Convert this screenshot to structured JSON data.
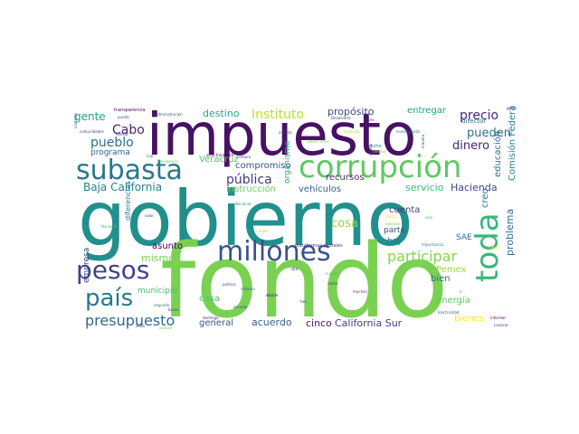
{
  "words": [
    {
      "text": "gobierno",
      "color": "#21908d"
    },
    {
      "text": "fondo",
      "color": "#7ad151"
    },
    {
      "text": "impuesto",
      "color": "#471164"
    },
    {
      "text": "corrupción",
      "color": "#5ec962"
    },
    {
      "text": "subasta",
      "color": "#2a788e"
    },
    {
      "text": "millones",
      "color": "#3b528b"
    },
    {
      "text": "pesos",
      "color": "#414487"
    },
    {
      "text": "país",
      "color": "#2a788e"
    },
    {
      "text": "toda",
      "color": "#35b779"
    },
    {
      "text": "presupuesto",
      "color": "#31688e"
    },
    {
      "text": "participar",
      "color": "#86d549"
    },
    {
      "text": "precio",
      "color": "#482878"
    },
    {
      "text": "Instituto",
      "color": "#bddf26"
    },
    {
      "text": "pública",
      "color": "#443983"
    },
    {
      "text": "Baja California",
      "color": "#26828e"
    },
    {
      "text": "Cabo",
      "color": "#481f70"
    },
    {
      "text": "pueblo",
      "color": "#2d708e"
    },
    {
      "text": "dinero",
      "color": "#482475"
    },
    {
      "text": "pueden",
      "color": "#2c728e"
    },
    {
      "text": "gente",
      "color": "#20a386"
    },
    {
      "text": "destino",
      "color": "#22a884"
    },
    {
      "text": "propósito",
      "color": "#3e4a89"
    },
    {
      "text": "entregar",
      "color": "#1fa187"
    },
    {
      "text": "programa",
      "color": "#32648e"
    },
    {
      "text": "Veracruz",
      "color": "#52c569"
    },
    {
      "text": "compromiso",
      "color": "#3b528b"
    },
    {
      "text": "instrucción",
      "color": "#6ece58"
    },
    {
      "text": "vehículos",
      "color": "#355f8d"
    },
    {
      "text": "organismo",
      "color": "#22a884"
    },
    {
      "text": "recursos",
      "color": "#472d7b"
    },
    {
      "text": "servicio",
      "color": "#3bbb75"
    },
    {
      "text": "Hacienda",
      "color": "#404688"
    },
    {
      "text": "educación",
      "color": "#2a788e"
    },
    {
      "text": "Comisión Federal",
      "color": "#27808e"
    },
    {
      "text": "cosa",
      "color": "#90d743"
    },
    {
      "text": "cuenta",
      "color": "#453882"
    },
    {
      "text": "parte",
      "color": "#3f4788"
    },
    {
      "text": "creo",
      "color": "#2c728e"
    },
    {
      "text": "problema",
      "color": "#2e6e8e"
    },
    {
      "text": "hoy",
      "color": "#25848e"
    },
    {
      "text": "SAE",
      "color": "#30698e"
    },
    {
      "text": "Pemex",
      "color": "#a0da39"
    },
    {
      "text": "bien",
      "color": "#2e6f8e"
    },
    {
      "text": "energía",
      "color": "#5ec962"
    },
    {
      "text": "bienes",
      "color": "#fde725"
    },
    {
      "text": "mismo",
      "color": "#7ad151"
    },
    {
      "text": "asunto",
      "color": "#440154"
    },
    {
      "text": "diferencias",
      "color": "#287c8e"
    },
    {
      "text": "municipio",
      "color": "#46c06f"
    },
    {
      "text": "empresa",
      "color": "#3e4989"
    },
    {
      "text": "casa",
      "color": "#4ac16d"
    },
    {
      "text": "general",
      "color": "#3a548c"
    },
    {
      "text": "acuerdo",
      "color": "#365c8d"
    },
    {
      "text": "cinco",
      "color": "#48186a"
    },
    {
      "text": "California Sur",
      "color": "#424086"
    },
    {
      "text": "transparencia",
      "color": "#440154"
    },
    {
      "text": "administración",
      "color": "#365d8d"
    },
    {
      "text": "pueda",
      "color": "#3f4889"
    },
    {
      "text": "comunidades",
      "color": "#443983"
    },
    {
      "text": "viendo",
      "color": "#46337f"
    },
    {
      "text": "contrato",
      "color": "#3b528b"
    },
    {
      "text": "lujo",
      "color": "#2c728e"
    },
    {
      "text": "Presidencia",
      "color": "#5ec962"
    },
    {
      "text": "Devolverle",
      "color": "#414487"
    },
    {
      "text": "Coahuila",
      "color": "#b5de2b"
    },
    {
      "text": "Bellas Artes",
      "color": "#75d054"
    },
    {
      "text": "dicho",
      "color": "#2a788e"
    },
    {
      "text": "tiempo",
      "color": "#95d840"
    },
    {
      "text": "director",
      "color": "#31688e"
    },
    {
      "text": "gasto",
      "color": "#482878"
    },
    {
      "text": "investigación",
      "color": "#31688e"
    },
    {
      "text": "zona fronteriza",
      "color": "#440154"
    },
    {
      "text": "inmisto",
      "color": "#3e4989"
    },
    {
      "text": "voz",
      "color": "#482475"
    },
    {
      "text": "Nacional",
      "color": "#21a685"
    },
    {
      "text": "valor",
      "color": "#3b528b"
    },
    {
      "text": "Nacional",
      "color": "#46c06f"
    },
    {
      "text": "cumplir",
      "color": "#b5de2b"
    },
    {
      "text": "pago",
      "color": "#fde725"
    },
    {
      "text": "ejemplo",
      "color": "#7ad151"
    },
    {
      "text": "sino",
      "color": "#35b779"
    },
    {
      "text": "plataformas digitales",
      "color": "#443983"
    },
    {
      "text": "importancia",
      "color": "#2a788e"
    },
    {
      "text": "Cabos",
      "color": "#fde725"
    },
    {
      "text": "dio",
      "color": "#3b528b"
    },
    {
      "text": "cuánto",
      "color": "#35b779"
    },
    {
      "text": "política",
      "color": "#3e4989"
    },
    {
      "text": "sistema",
      "color": "#31688e"
    },
    {
      "text": "decirle",
      "color": "#440154"
    },
    {
      "text": "venta",
      "color": "#3e4989"
    },
    {
      "text": "muchas",
      "color": "#433e85"
    },
    {
      "text": "ir",
      "color": "#21918c"
    },
    {
      "text": "tan",
      "color": "#472d7b"
    },
    {
      "text": "escuela",
      "color": "#3b528b"
    },
    {
      "text": "segundo",
      "color": "#2a788e"
    },
    {
      "text": "bases",
      "color": "#3e4a89"
    },
    {
      "text": "domingo",
      "color": "#482878"
    },
    {
      "text": "Electricidad",
      "color": "#31688e"
    },
    {
      "text": "informar",
      "color": "#440154"
    },
    {
      "text": "conocer",
      "color": "#453781"
    },
    {
      "text": "incluso",
      "color": "#6ece58"
    },
    {
      "text": "debo",
      "color": "#404688"
    },
    {
      "text": "compra",
      "color": "#443983"
    },
    {
      "text": "manera",
      "color": "#3b528b"
    },
    {
      "text": "quiero",
      "color": "#433e85"
    },
    {
      "text": "veces",
      "color": "#482475"
    }
  ]
}
